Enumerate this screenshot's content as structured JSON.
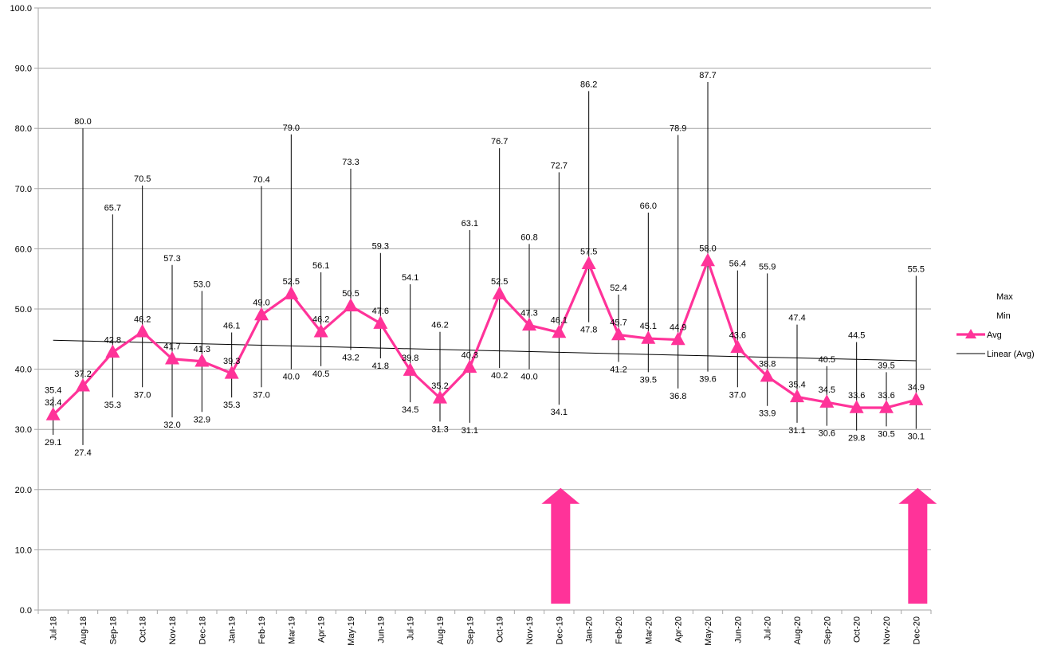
{
  "chart_data": {
    "type": "line",
    "title": "",
    "xlabel": "",
    "ylabel": "",
    "ylim": [
      0,
      100
    ],
    "y_tick_step": 10,
    "grid": true,
    "legend_position": "right",
    "categories": [
      "Jul-18",
      "Aug-18",
      "Sep-18",
      "Oct-18",
      "Nov-18",
      "Dec-18",
      "Jan-19",
      "Feb-19",
      "Mar-19",
      "Apr-19",
      "May-19",
      "Jun-19",
      "Jul-19",
      "Aug-19",
      "Sep-19",
      "Oct-19",
      "Nov-19",
      "Dec-19",
      "Jan-20",
      "Feb-20",
      "Mar-20",
      "Apr-20",
      "May-20",
      "Jun-20",
      "Jul-20",
      "Aug-20",
      "Sep-20",
      "Oct-20",
      "Nov-20",
      "Dec-20"
    ],
    "series": [
      {
        "name": "Max",
        "values": [
          35.4,
          80.0,
          65.7,
          70.5,
          57.3,
          53.0,
          46.1,
          70.4,
          79.0,
          56.1,
          73.3,
          59.3,
          54.1,
          46.2,
          63.1,
          76.7,
          60.8,
          72.7,
          86.2,
          52.4,
          66.0,
          78.9,
          87.7,
          56.4,
          55.9,
          47.4,
          40.5,
          44.5,
          39.5,
          55.5
        ]
      },
      {
        "name": "Min",
        "values": [
          29.1,
          27.4,
          35.3,
          37.0,
          32.0,
          32.9,
          35.3,
          37.0,
          40.0,
          40.5,
          43.2,
          41.8,
          34.5,
          31.3,
          31.1,
          40.2,
          40.0,
          34.1,
          47.8,
          41.2,
          39.5,
          36.8,
          39.6,
          37.0,
          33.9,
          31.1,
          30.6,
          29.8,
          30.5,
          30.1
        ]
      },
      {
        "name": "Avg",
        "values": [
          32.4,
          37.2,
          42.8,
          46.2,
          41.7,
          41.3,
          39.3,
          49.0,
          52.5,
          46.2,
          50.5,
          47.6,
          39.8,
          35.2,
          40.3,
          52.5,
          47.3,
          46.1,
          57.5,
          45.7,
          45.1,
          44.9,
          58.0,
          43.6,
          38.8,
          35.4,
          34.5,
          33.6,
          33.6,
          34.9
        ]
      }
    ],
    "trendline": {
      "name": "Linear (Avg)",
      "start": 44.8,
      "end": 41.4
    },
    "arrows": {
      "categories": [
        "Dec-19",
        "Dec-20"
      ],
      "from": 0,
      "to": 20
    }
  },
  "colors": {
    "avg": "#FF3399",
    "arrow": "#FF3399",
    "line": "#000000",
    "grid": "#A6A6A6"
  },
  "legend": [
    {
      "label": "Max",
      "marker": "none"
    },
    {
      "label": "Min",
      "marker": "none"
    },
    {
      "label": "Avg",
      "marker": "pink-line-triangle"
    },
    {
      "label": "Linear (Avg)",
      "marker": "black-line"
    }
  ]
}
